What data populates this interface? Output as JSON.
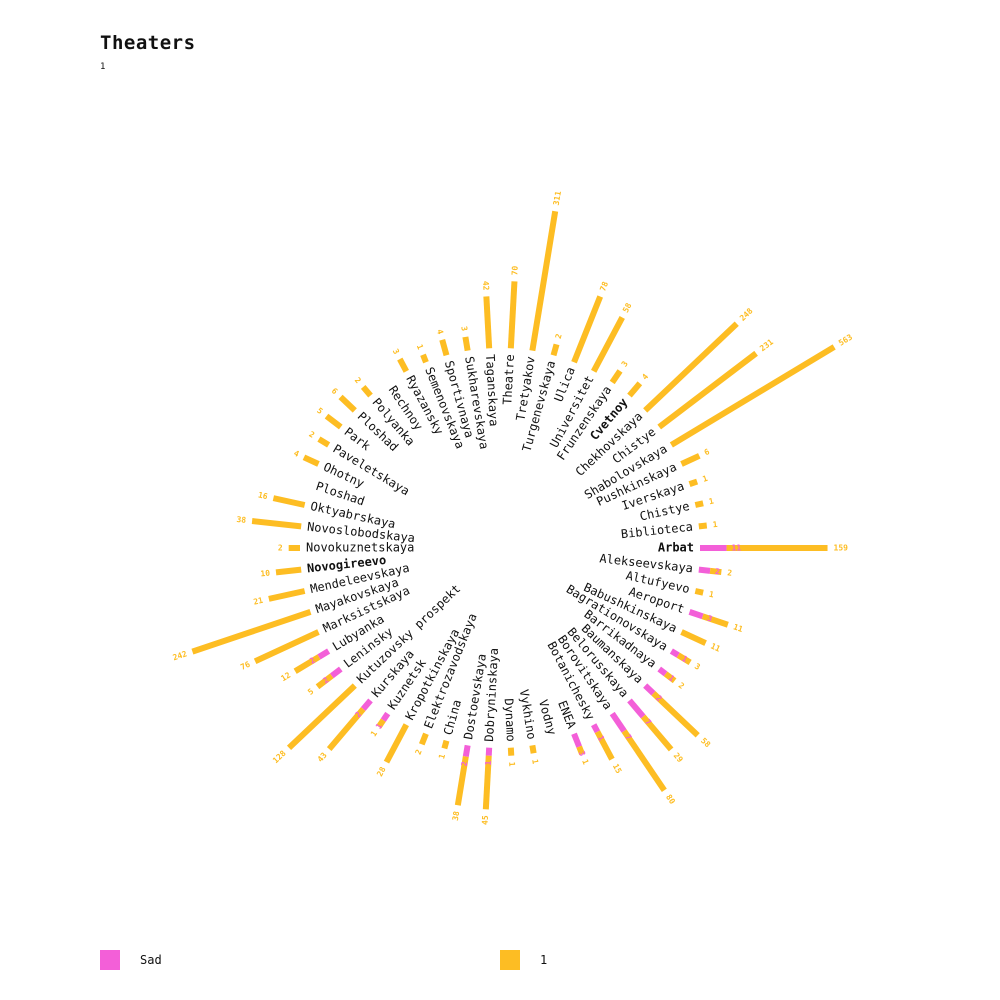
{
  "title": "Theaters",
  "subtitle": "1",
  "colors": {
    "sad": "#f35fd8",
    "one": "#fdbd23"
  },
  "legend": [
    {
      "label": "Sad",
      "color": "#f35fd8"
    },
    {
      "label": "1",
      "color": "#fdbd23"
    }
  ],
  "chart_data": {
    "type": "bar",
    "subtype": "radial-stacked",
    "series_names": [
      "Sad",
      "1"
    ],
    "categories": [
      "Arbat",
      "Alekseevskaya",
      "Altufyevo",
      "Aeroport",
      "Babushkinskaya",
      "Bagrationovskaya",
      "Barrikadnaya",
      "Baumanskaya",
      "Belorusskaya",
      "Borovitskaya",
      "Botanichesky",
      "ENEA",
      "Vodny",
      "Vykhino",
      "Dynamo",
      "Dobryninskaya",
      "Dostoevskaya",
      "China",
      "Elektrozavodskaya",
      "Kropotkinskaya",
      "Kuznetsk",
      "Kurskaya",
      "Kutuzovsky prospekt",
      "Leninsky",
      "Lubyanka",
      "Marksistskaya",
      "Mayakovskaya",
      "Mendeleevskaya",
      "Novogireevo",
      "Novokuznetskaya",
      "Novoslobodskaya",
      "Oktyabrskaya",
      "Ploshad",
      "Ohotny",
      "Paveletskaya",
      "Park",
      "Ploshad",
      "Polyanka",
      "Rechnoy",
      "Ryazansky",
      "Semenovskaya",
      "Sportivnaya",
      "Sukharevskaya",
      "Taganskaya",
      "Theatre",
      "Tretyakov",
      "Turgenevskaya",
      "Ulica",
      "Universitet",
      "Frunzenskaya",
      "Cvetnoy",
      "Chekhovskaya",
      "Chistye",
      "Shabolovskaya",
      "Pushkinskaya",
      "Iverskaya",
      "Chistye",
      "Biblioteca"
    ],
    "sad_labels": [
      "11",
      "2",
      "",
      "3",
      "",
      "1",
      "1",
      "2",
      "7",
      "7",
      "1",
      "3",
      "",
      "",
      "",
      "1",
      "2",
      "",
      "",
      "",
      "1",
      "2",
      "",
      "2",
      "2",
      "",
      "",
      "",
      "",
      "",
      "",
      "",
      "",
      "",
      "",
      "",
      "",
      "",
      "",
      "",
      "",
      "",
      "",
      "",
      "",
      "",
      "",
      "",
      "",
      "",
      "",
      "",
      "",
      "",
      "",
      "",
      "",
      ""
    ],
    "one_labels": [
      "159",
      "2",
      "1",
      "11",
      "11",
      "3",
      "2",
      "58",
      "29",
      "80",
      "15",
      "1",
      "",
      "1",
      "1",
      "45",
      "38",
      "1",
      "2",
      "28",
      "1",
      "43",
      "128",
      "5",
      "12",
      "76",
      "242",
      "21",
      "10",
      "2",
      "38",
      "16",
      "",
      "4",
      "2",
      "5",
      "6",
      "2",
      "",
      "3",
      "1",
      "4",
      "3",
      "42",
      "70",
      "311",
      "2",
      "78",
      "58",
      "3",
      "4",
      "248",
      "231",
      "563",
      "6",
      "1",
      "1",
      "1"
    ],
    "values_sad": [
      11,
      2,
      0,
      3,
      0,
      1,
      1,
      2,
      7,
      7,
      1,
      3,
      0,
      0,
      0,
      1,
      2,
      0,
      0,
      0,
      1,
      2,
      0,
      2,
      2,
      0,
      0,
      0,
      0,
      0,
      0,
      0,
      0,
      0,
      0,
      0,
      0,
      0,
      0,
      0,
      0,
      0,
      0,
      0,
      0,
      0,
      0,
      0,
      0,
      0,
      0,
      0,
      0,
      0,
      0,
      0,
      0,
      0
    ],
    "values_one": [
      159,
      2,
      1,
      11,
      11,
      3,
      2,
      58,
      29,
      80,
      15,
      1,
      0,
      1,
      1,
      45,
      38,
      1,
      2,
      28,
      1,
      43,
      128,
      5,
      12,
      76,
      242,
      21,
      10,
      2,
      38,
      16,
      0,
      4,
      2,
      5,
      6,
      2,
      0,
      3,
      1,
      4,
      3,
      42,
      70,
      311,
      2,
      78,
      58,
      3,
      4,
      248,
      231,
      563,
      6,
      1,
      1,
      1
    ],
    "highlight": [
      "Arbat",
      "Novogireevo",
      "Cvetnoy"
    ]
  }
}
